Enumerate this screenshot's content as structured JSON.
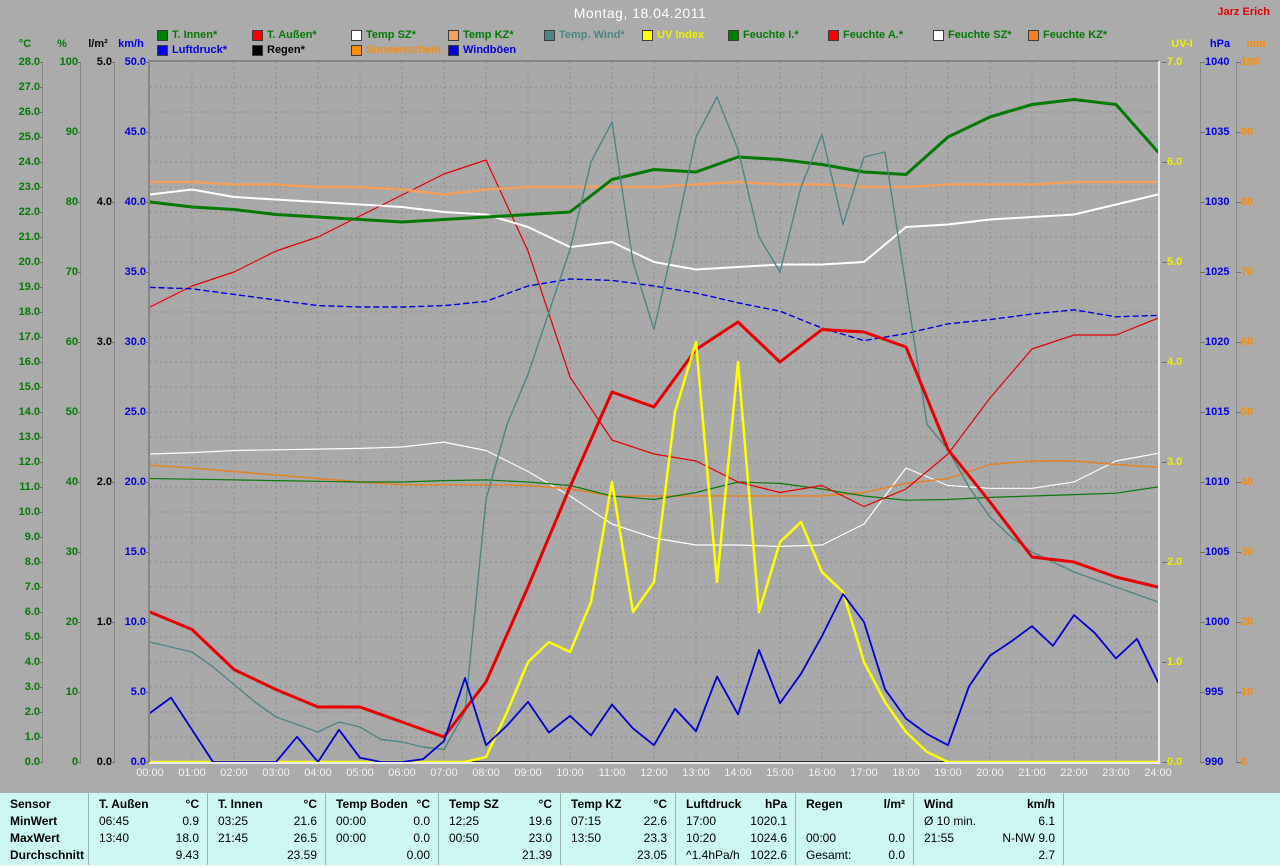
{
  "header": {
    "title": "Montag, 18.04.2011",
    "author": "Jarz Erich"
  },
  "legend": {
    "row1": [
      {
        "label": "T. Innen*",
        "swatch": "#008000",
        "text": "#007c00"
      },
      {
        "label": "T. Außen*",
        "swatch": "#ff0000",
        "text": "#007c00"
      },
      {
        "label": "Temp SZ*",
        "swatch": "#ffffff",
        "text": "#007c00"
      },
      {
        "label": "Temp KZ*",
        "swatch": "#f4a05a",
        "text": "#007c00"
      },
      {
        "label": "Temp. Wind*",
        "swatch": "#4d8585",
        "text": "#4d8585"
      },
      {
        "label": "UV Index",
        "swatch": "#ffff00",
        "text": "#f0f000"
      },
      {
        "label": "Feuchte I.*",
        "swatch": "#008000",
        "text": "#007c00"
      },
      {
        "label": "Feuchte A.*",
        "swatch": "#ff0000",
        "text": "#007c00"
      },
      {
        "label": "Feuchte SZ*",
        "swatch": "#ffffff",
        "text": "#007c00"
      },
      {
        "label": "Feuchte KZ*",
        "swatch": "#f08020",
        "text": "#007c00"
      }
    ],
    "row2": [
      {
        "label": "Luftdruck*",
        "swatch": "#0000e0",
        "text": "#0000e0"
      },
      {
        "label": "Regen*",
        "swatch": "#000000",
        "text": "#000000"
      },
      {
        "label": "Sonnenschein",
        "swatch": "#ff8c00",
        "text": "#ff8c00"
      },
      {
        "label": "Windböen",
        "swatch": "#0000e0",
        "text": "#0000e0"
      }
    ]
  },
  "chart_data": {
    "type": "line",
    "x_labels": [
      "00:00",
      "01:00",
      "02:00",
      "03:00",
      "04:00",
      "05:00",
      "06:00",
      "07:00",
      "08:00",
      "09:00",
      "10:00",
      "11:00",
      "12:00",
      "13:00",
      "14:00",
      "15:00",
      "16:00",
      "17:00",
      "18:00",
      "19:00",
      "20:00",
      "21:00",
      "22:00",
      "23:00",
      "24:00"
    ],
    "grid": "dashed-gray, 1 h vertical / 1 °C horizontal",
    "axes": {
      "left": [
        {
          "unit": "°C",
          "scale": "degc",
          "min": 0,
          "max": 28,
          "step": 1,
          "decimals": 1,
          "color": "#007c00"
        },
        {
          "unit": "%",
          "scale": "pct",
          "min": 0,
          "max": 100,
          "step": 10,
          "decimals": 0,
          "color": "#007c00"
        },
        {
          "unit": "l/m²",
          "scale": "lm2",
          "min": 0,
          "max": 5,
          "step": 1,
          "decimals": 1,
          "color": "#000000"
        },
        {
          "unit": "km/h",
          "scale": "kmh",
          "min": 0,
          "max": 50,
          "step": 5,
          "decimals": 1,
          "color": "#0000e0"
        }
      ],
      "right": [
        {
          "unit": "UV-I",
          "scale": "uv",
          "min": 0,
          "max": 7,
          "step": 1,
          "decimals": 1,
          "color": "#f0f000"
        },
        {
          "unit": "hPa",
          "scale": "hpa",
          "min": 990,
          "max": 1040,
          "step": 5,
          "decimals": 0,
          "color": "#0000e0"
        },
        {
          "unit": "min",
          "scale": "minu",
          "min": 0,
          "max": 100,
          "step": 10,
          "decimals": 0,
          "color": "#ff8c00"
        }
      ]
    },
    "series": [
      {
        "id": "t_innen",
        "label": "T. Innen*",
        "color": "#007a00",
        "width": 3,
        "scale": "degc",
        "points_per_hour": 1,
        "values": [
          22.4,
          22.2,
          22.1,
          21.9,
          21.8,
          21.7,
          21.6,
          21.7,
          21.8,
          21.9,
          22.0,
          23.3,
          23.7,
          23.6,
          24.2,
          24.1,
          23.9,
          23.6,
          23.5,
          25.0,
          25.8,
          26.3,
          26.5,
          26.3,
          24.4
        ]
      },
      {
        "id": "t_aussen",
        "label": "T. Außen*",
        "color": "#e60000",
        "width": 3,
        "scale": "degc",
        "points_per_hour": 1,
        "values": [
          6.0,
          5.3,
          3.7,
          2.9,
          2.2,
          2.2,
          1.6,
          1.0,
          3.2,
          7.0,
          11.0,
          14.8,
          14.2,
          16.5,
          17.6,
          16.0,
          17.3,
          17.2,
          16.6,
          12.5,
          10.4,
          8.2,
          8.0,
          7.4,
          7.0
        ]
      },
      {
        "id": "temp_sz",
        "label": "Temp SZ*",
        "color": "#ffffff",
        "width": 2,
        "scale": "degc",
        "points_per_hour": 1,
        "values": [
          22.7,
          22.9,
          22.6,
          22.5,
          22.4,
          22.3,
          22.2,
          22.0,
          21.9,
          21.4,
          20.6,
          20.8,
          20.0,
          19.7,
          19.8,
          19.9,
          19.9,
          20.0,
          21.4,
          21.5,
          21.7,
          21.8,
          21.9,
          22.3,
          22.7
        ]
      },
      {
        "id": "temp_kz",
        "label": "Temp KZ*",
        "color": "#f4a05a",
        "width": 2.5,
        "scale": "degc",
        "points_per_hour": 1,
        "values": [
          23.2,
          23.2,
          23.1,
          23.1,
          23.0,
          23.0,
          22.9,
          22.7,
          22.9,
          23.0,
          23.0,
          23.0,
          23.0,
          23.1,
          23.2,
          23.1,
          23.1,
          23.0,
          23.0,
          23.1,
          23.1,
          23.1,
          23.2,
          23.2,
          23.2
        ]
      },
      {
        "id": "temp_wind",
        "label": "Temp. Wind*",
        "color": "#4d8585",
        "width": 1.4,
        "scale": "degc",
        "points_per_hour": 2,
        "values": [
          4.8,
          4.6,
          4.4,
          3.8,
          3.1,
          2.4,
          1.8,
          1.5,
          1.2,
          1.6,
          1.4,
          0.9,
          0.8,
          0.6,
          0.5,
          2.0,
          10.5,
          13.5,
          15.5,
          18.0,
          20.5,
          24.0,
          25.6,
          20.0,
          17.3,
          21.0,
          25.0,
          26.6,
          24.5,
          21.0,
          19.6,
          23.0,
          25.1,
          21.5,
          24.2,
          24.4,
          19.0,
          13.5,
          12.5,
          11.0,
          9.8,
          9.0,
          8.4,
          8.0,
          7.6,
          7.3,
          7.0,
          6.7,
          6.4
        ]
      },
      {
        "id": "uv_index",
        "label": "UV Index",
        "color": "#ffff00",
        "width": 2.5,
        "scale": "uv",
        "points_per_hour": 2,
        "values": [
          0,
          0,
          0,
          0,
          0,
          0,
          0,
          0,
          0,
          0,
          0,
          0,
          0,
          0,
          0,
          0,
          0.05,
          0.5,
          1.0,
          1.2,
          1.1,
          1.6,
          2.8,
          1.5,
          1.8,
          3.5,
          4.2,
          1.8,
          4.0,
          1.5,
          2.2,
          2.4,
          1.9,
          1.7,
          1.0,
          0.6,
          0.3,
          0.1,
          0,
          0,
          0,
          0,
          0,
          0,
          0,
          0,
          0,
          0,
          0
        ]
      },
      {
        "id": "feuchte_i",
        "label": "Feuchte I.*",
        "color": "#0a7a0a",
        "width": 1.2,
        "scale": "pct",
        "points_per_hour": 1,
        "values": [
          40.5,
          40.4,
          40.3,
          40.2,
          40.1,
          40.0,
          40.0,
          40.2,
          40.3,
          40.0,
          39.5,
          38.0,
          37.5,
          38.5,
          40.0,
          39.8,
          39.0,
          38.0,
          37.4,
          37.5,
          37.8,
          38.0,
          38.2,
          38.4,
          39.3
        ]
      },
      {
        "id": "feuchte_a",
        "label": "Feuchte A.*",
        "color": "#e60000",
        "width": 1.2,
        "scale": "pct",
        "points_per_hour": 1,
        "values": [
          65,
          68,
          70,
          73,
          75,
          78,
          81,
          84,
          86,
          73,
          55,
          46,
          44,
          43,
          40,
          38.5,
          39.5,
          36.5,
          39,
          44,
          52,
          59,
          61,
          61,
          63.4
        ]
      },
      {
        "id": "feuchte_sz",
        "label": "Feuchte SZ*",
        "color": "#ffffff",
        "width": 1.2,
        "scale": "pct",
        "points_per_hour": 1,
        "values": [
          44.0,
          44.2,
          44.5,
          44.6,
          44.7,
          44.8,
          45.0,
          45.7,
          44.5,
          41.5,
          38.0,
          34.0,
          32.0,
          31.0,
          31.0,
          30.8,
          31.0,
          34.0,
          42.0,
          39.5,
          39.1,
          39.1,
          40.0,
          43.0,
          44.1
        ]
      },
      {
        "id": "feuchte_kz",
        "label": "Feuchte KZ*",
        "color": "#e88020",
        "width": 1.4,
        "scale": "pct",
        "points_per_hour": 1,
        "values": [
          42.4,
          42.0,
          41.5,
          41.0,
          40.5,
          40.0,
          39.6,
          39.6,
          39.6,
          39.5,
          39.0,
          38.0,
          38.0,
          38.0,
          38.0,
          38.0,
          38.0,
          38.5,
          39.8,
          40.5,
          42.5,
          43.0,
          43.0,
          42.5,
          42.1
        ]
      },
      {
        "id": "luftdruck",
        "label": "Luftdruck*",
        "color": "#0000dd",
        "width": 1.4,
        "scale": "hpa",
        "points_per_hour": 1,
        "dash": "5 4",
        "values": [
          1023.9,
          1023.8,
          1023.4,
          1023.0,
          1022.6,
          1022.5,
          1022.5,
          1022.6,
          1022.9,
          1024.0,
          1024.5,
          1024.4,
          1024.0,
          1023.5,
          1022.8,
          1022.2,
          1021.0,
          1020.1,
          1020.6,
          1021.3,
          1021.6,
          1022.0,
          1022.3,
          1021.8,
          1021.9
        ]
      },
      {
        "id": "regen",
        "label": "Regen*",
        "color": "#000000",
        "width": 1.5,
        "scale": "lm2",
        "points_per_hour": 1,
        "values": [
          0,
          0,
          0,
          0,
          0,
          0,
          0,
          0,
          0,
          0,
          0,
          0,
          0,
          0,
          0,
          0,
          0,
          0,
          0,
          0,
          0,
          0,
          0,
          0,
          0
        ]
      },
      {
        "id": "sonnenschein",
        "label": "Sonnenschein",
        "color": "#ff8c00",
        "width": 1,
        "scale": "minu",
        "points_per_hour": 1,
        "values": [
          0,
          0,
          0,
          0,
          0,
          0,
          0,
          0,
          0,
          0,
          0,
          0,
          0,
          0,
          0,
          0,
          0,
          0,
          0,
          0,
          0,
          0,
          0,
          0,
          0
        ]
      },
      {
        "id": "windboeen",
        "label": "Windböen",
        "color": "#0000d5",
        "width": 1.8,
        "scale": "kmh",
        "points_per_hour": 2,
        "values": [
          3.5,
          4.6,
          2.3,
          0,
          0,
          0,
          0,
          1.8,
          0,
          2.3,
          0.3,
          0,
          0,
          0.2,
          1.5,
          6.0,
          1.2,
          2.6,
          4.3,
          2.1,
          3.3,
          1.9,
          4.1,
          2.4,
          1.2,
          3.8,
          2.2,
          6.1,
          3.4,
          8.0,
          4.2,
          6.3,
          9.0,
          12.0,
          10.0,
          5.2,
          3.1,
          2.0,
          1.2,
          5.4,
          7.6,
          8.6,
          9.7,
          8.3,
          10.5,
          9.2,
          7.4,
          8.8,
          5.7
        ]
      }
    ]
  },
  "table": {
    "row_labels": [
      "Sensor",
      "MinWert",
      "MaxWert",
      "Durchschnitt"
    ],
    "groups": [
      {
        "name": "T. Außen",
        "unit": "°C",
        "min": [
          "06:45",
          "0.9"
        ],
        "max": [
          "13:40",
          "18.0"
        ],
        "avg": [
          "",
          "9.43"
        ]
      },
      {
        "name": "T. Innen",
        "unit": "°C",
        "min": [
          "03:25",
          "21.6"
        ],
        "max": [
          "21:45",
          "26.5"
        ],
        "avg": [
          "",
          "23.59"
        ]
      },
      {
        "name": "Temp Boden",
        "unit": "°C",
        "min": [
          "00:00",
          "0.0"
        ],
        "max": [
          "00:00",
          "0.0"
        ],
        "avg": [
          "",
          "0.00"
        ]
      },
      {
        "name": "Temp SZ",
        "unit": "°C",
        "min": [
          "12:25",
          "19.6"
        ],
        "max": [
          "00:50",
          "23.0"
        ],
        "avg": [
          "",
          "21.39"
        ]
      },
      {
        "name": "Temp KZ",
        "unit": "°C",
        "min": [
          "07:15",
          "22.6"
        ],
        "max": [
          "13:50",
          "23.3"
        ],
        "avg": [
          "",
          "23.05"
        ]
      },
      {
        "name": "Luftdruck",
        "unit": "hPa",
        "min": [
          "17:00",
          "1020.1"
        ],
        "max": [
          "10:20",
          "1024.6"
        ],
        "avg": [
          "^1.4hPa/h",
          "1022.6"
        ]
      },
      {
        "name": "Regen",
        "unit": "l/m²",
        "min": [
          "",
          ""
        ],
        "max": [
          "00:00",
          "0.0"
        ],
        "avg": [
          "Gesamt:",
          "0.0"
        ]
      },
      {
        "name": "Wind",
        "unit": "km/h",
        "min": [
          "Ø 10 min.",
          "6.1"
        ],
        "max": [
          "21:55",
          "N-NW 9.0"
        ],
        "avg": [
          "",
          "2.7"
        ]
      }
    ]
  }
}
